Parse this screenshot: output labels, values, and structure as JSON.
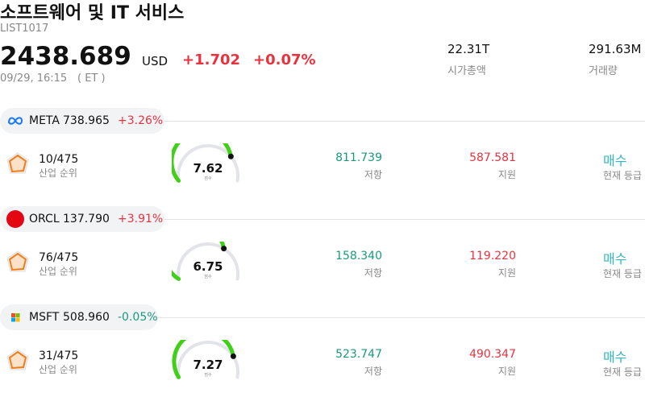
{
  "header": {
    "title": "소프트웨어 및 IT 서비스",
    "code": "LIST1017",
    "price": "2438.689",
    "currency": "USD",
    "change": "+1.702",
    "change_pct": "+0.07%",
    "time": "09/29, 16:15",
    "timezone": "( ET )",
    "market_cap": "22.31T",
    "market_cap_label": "시가총액",
    "volume": "291.63M",
    "volume_label": "거래량"
  },
  "stocks": [
    {
      "ticker": "META",
      "price": "738.965",
      "change": "+3.26%",
      "rank": "10/475",
      "rank_label": "산업 순위",
      "score": "7.62",
      "score_label": "점수",
      "resistance": "811.739",
      "resistance_label": "저항",
      "support": "587.581",
      "support_label": "지원",
      "rating": "매수",
      "rating_label": "현재 등급"
    },
    {
      "ticker": "ORCL",
      "price": "137.790",
      "change": "+3.91%",
      "rank": "76/475",
      "rank_label": "산업 순위",
      "score": "6.75",
      "score_label": "점수",
      "resistance": "158.340",
      "resistance_label": "저항",
      "support": "119.220",
      "support_label": "지원",
      "rating": "매수",
      "rating_label": "현재 등급"
    },
    {
      "ticker": "MSFT",
      "price": "508.960",
      "change": "-0.05%",
      "rank": "31/475",
      "rank_label": "산업 순위",
      "score": "7.27",
      "score_label": "점수",
      "resistance": "523.747",
      "resistance_label": "저항",
      "support": "490.347",
      "support_label": "지원",
      "rating": "매수",
      "rating_label": "현재 등급"
    }
  ]
}
